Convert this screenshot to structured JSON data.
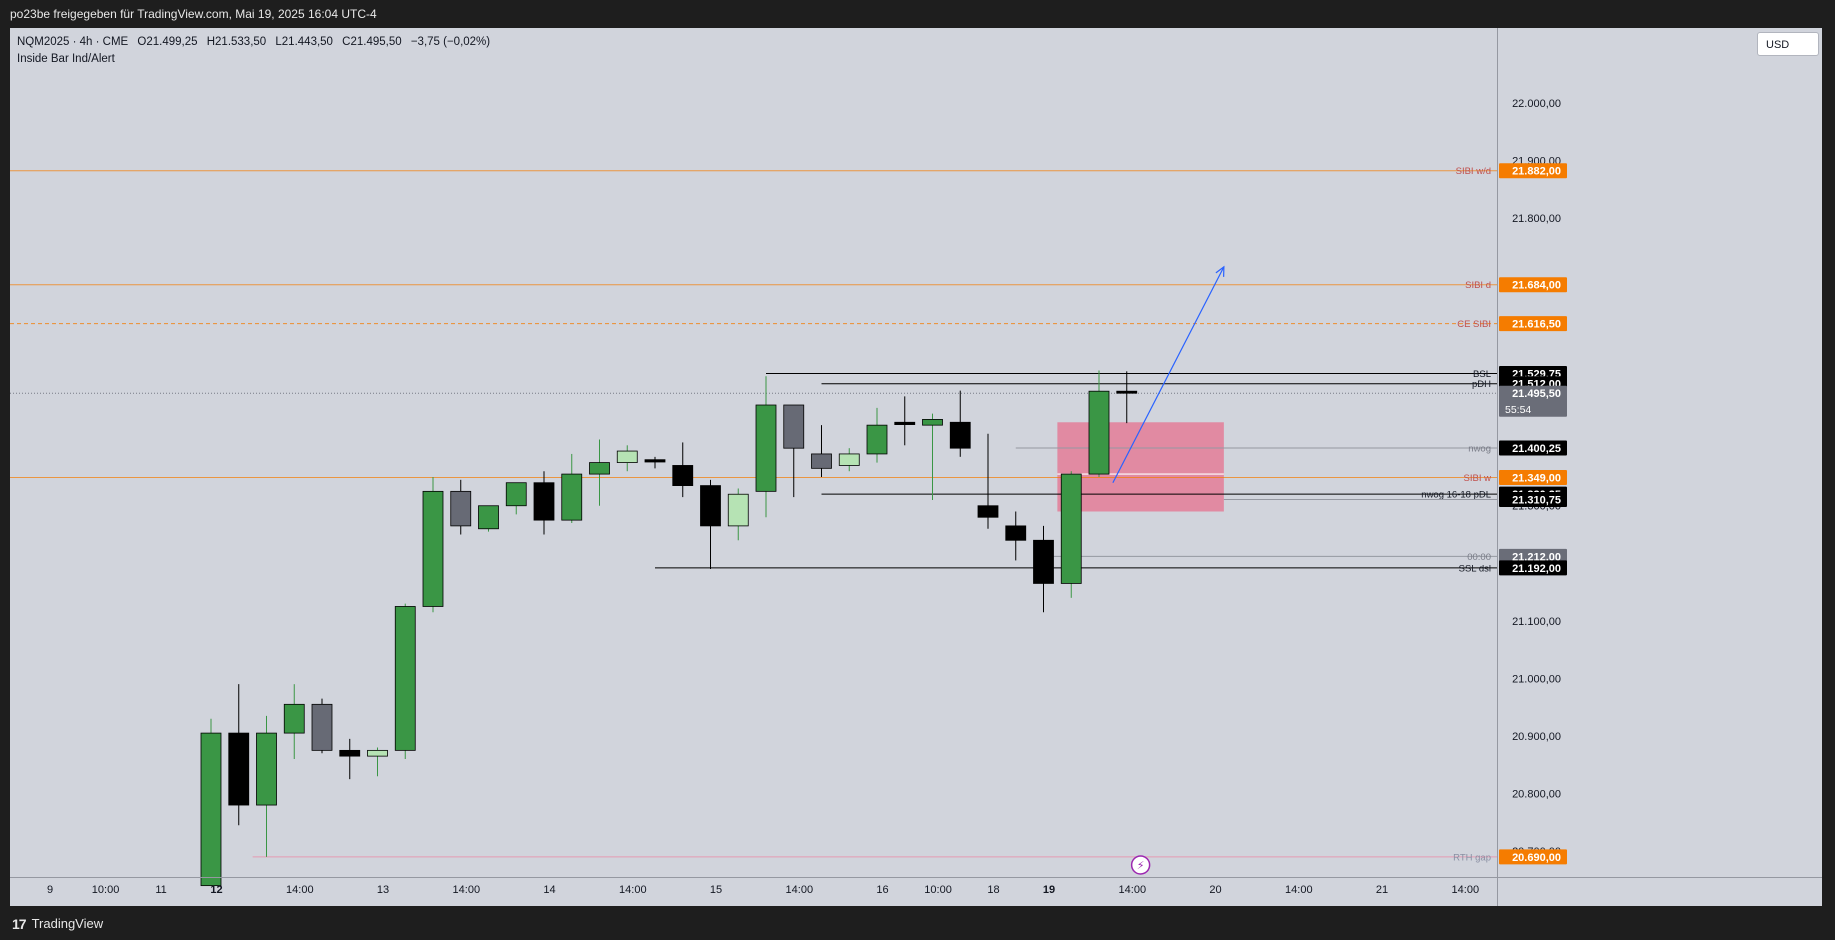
{
  "header": {
    "title": "po23be freigegeben für TradingView.com, Mai 19, 2025 16:04 UTC-4"
  },
  "footer": {
    "brand": "TradingView",
    "logo_glyph": "17"
  },
  "legend": {
    "symbol": "NQM2025 · 4h · CME",
    "open": "O21.499,25",
    "high": "H21.533,50",
    "low": "L21.443,50",
    "close": "C21.495,50",
    "change": "−3,75 (−0,02%)",
    "indicator": "Inside Bar Ind/Alert"
  },
  "currency": "USD",
  "colors": {
    "background": "#d1d4dc",
    "bull": "#3a9645",
    "bear": "#000000",
    "inside_bull": "#b6e3b4",
    "inside_bear": "#676a75",
    "orange": "#f57c00",
    "fvg_box": "#e6728f",
    "arrow": "#2962ff"
  },
  "chart_data": {
    "type": "candlestick",
    "title": "",
    "xlabel": "",
    "ylabel": "",
    "ylim": [
      20655,
      22130
    ],
    "y_ticks": [
      20700,
      20800,
      20900,
      21000,
      21100,
      21300,
      21800,
      21900,
      22000
    ],
    "y_tick_labels": [
      "20.700,00",
      "20.800,00",
      "20.900,00",
      "21.000,00",
      "21.100,00",
      "21.300,00",
      "21.800,00",
      "21.900,00",
      "22.000,00"
    ],
    "x_tick_labels": [
      {
        "i": -5.8,
        "text": "9"
      },
      {
        "i": -3.8,
        "text": "10:00"
      },
      {
        "i": -1.8,
        "text": "11"
      },
      {
        "i": 0.2,
        "text": "12",
        "bold": true
      },
      {
        "i": 3.2,
        "text": "14:00"
      },
      {
        "i": 6.2,
        "text": "13"
      },
      {
        "i": 9.2,
        "text": "14:00"
      },
      {
        "i": 12.2,
        "text": "14"
      },
      {
        "i": 15.2,
        "text": "14:00"
      },
      {
        "i": 18.2,
        "text": "15"
      },
      {
        "i": 21.2,
        "text": "14:00"
      },
      {
        "i": 24.2,
        "text": "16"
      },
      {
        "i": 26.2,
        "text": "10:00"
      },
      {
        "i": 28.2,
        "text": "18"
      },
      {
        "i": 30.2,
        "text": "19",
        "bold": true
      },
      {
        "i": 33.2,
        "text": "14:00"
      },
      {
        "i": 36.2,
        "text": "20"
      },
      {
        "i": 39.2,
        "text": "14:00"
      },
      {
        "i": 42.2,
        "text": "21"
      },
      {
        "i": 45.2,
        "text": "14:00"
      }
    ],
    "candles": [
      {
        "o": 20640,
        "h": 20930,
        "l": 20640,
        "c": 20905,
        "t": "bull"
      },
      {
        "o": 20905,
        "h": 20990,
        "l": 20745,
        "c": 20780,
        "t": "bear"
      },
      {
        "o": 20780,
        "h": 20935,
        "l": 20690,
        "c": 20905,
        "t": "bull"
      },
      {
        "o": 20905,
        "h": 20990,
        "l": 20860,
        "c": 20955,
        "t": "bull"
      },
      {
        "o": 20955,
        "h": 20965,
        "l": 20870,
        "c": 20875,
        "t": "inside_bear"
      },
      {
        "o": 20875,
        "h": 20895,
        "l": 20825,
        "c": 20865,
        "t": "bear"
      },
      {
        "o": 20865,
        "h": 20880,
        "l": 20830,
        "c": 20875,
        "t": "inside_bull"
      },
      {
        "o": 20875,
        "h": 21130,
        "l": 20860,
        "c": 21125,
        "t": "bull"
      },
      {
        "o": 21125,
        "h": 21350,
        "l": 21115,
        "c": 21325,
        "t": "bull"
      },
      {
        "o": 21325,
        "h": 21345,
        "l": 21250,
        "c": 21265,
        "t": "inside_bear"
      },
      {
        "o": 21260,
        "h": 21300,
        "l": 21255,
        "c": 21300,
        "t": "bull"
      },
      {
        "o": 21300,
        "h": 21340,
        "l": 21285,
        "c": 21340,
        "t": "bull"
      },
      {
        "o": 21340,
        "h": 21360,
        "l": 21250,
        "c": 21275,
        "t": "bear"
      },
      {
        "o": 21275,
        "h": 21390,
        "l": 21270,
        "c": 21355,
        "t": "bull"
      },
      {
        "o": 21355,
        "h": 21415,
        "l": 21300,
        "c": 21375,
        "t": "bull"
      },
      {
        "o": 21375,
        "h": 21405,
        "l": 21360,
        "c": 21395,
        "t": "inside_bull"
      },
      {
        "o": 21380,
        "h": 21385,
        "l": 21365,
        "c": 21376,
        "t": "bear"
      },
      {
        "o": 21370,
        "h": 21410,
        "l": 21315,
        "c": 21335,
        "t": "bear"
      },
      {
        "o": 21335,
        "h": 21345,
        "l": 21190,
        "c": 21265,
        "t": "bear"
      },
      {
        "o": 21265,
        "h": 21330,
        "l": 21240,
        "c": 21320,
        "t": "inside_bull"
      },
      {
        "o": 21325,
        "h": 21525,
        "l": 21280,
        "c": 21475,
        "t": "bull"
      },
      {
        "o": 21475,
        "h": 21475,
        "l": 21315,
        "c": 21400,
        "t": "inside_bear"
      },
      {
        "o": 21390,
        "h": 21440,
        "l": 21350,
        "c": 21365,
        "t": "inside_bear"
      },
      {
        "o": 21370,
        "h": 21400,
        "l": 21360,
        "c": 21390,
        "t": "inside_bull"
      },
      {
        "o": 21390,
        "h": 21470,
        "l": 21375,
        "c": 21440,
        "t": "bull"
      },
      {
        "o": 21445,
        "h": 21490,
        "l": 21405,
        "c": 21441,
        "t": "bear"
      },
      {
        "o": 21440,
        "h": 21460,
        "l": 21310,
        "c": 21450,
        "t": "bull"
      },
      {
        "o": 21445,
        "h": 21500,
        "l": 21385,
        "c": 21400,
        "t": "bear"
      },
      {
        "o": 21300,
        "h": 21425,
        "l": 21260,
        "c": 21280,
        "t": "bear"
      },
      {
        "o": 21265,
        "h": 21290,
        "l": 21205,
        "c": 21240,
        "t": "bear"
      },
      {
        "o": 21240,
        "h": 21265,
        "l": 21115,
        "c": 21165,
        "t": "bear"
      },
      {
        "o": 21165,
        "h": 21360,
        "l": 21140,
        "c": 21355,
        "t": "bull"
      },
      {
        "o": 21355,
        "h": 21535,
        "l": 21350,
        "c": 21499,
        "t": "bull"
      },
      {
        "o": 21499,
        "h": 21533.5,
        "l": 21443.5,
        "c": 21495.5,
        "t": "bear"
      }
    ],
    "levels": [
      {
        "price": 21882,
        "label": "SIBI w/d",
        "tag": "21.882,00",
        "style": "orange",
        "tag_style": "orange",
        "from": -7.7
      },
      {
        "price": 21684,
        "label": "SIBI d",
        "tag": "21.684,00",
        "style": "orange",
        "tag_style": "orange",
        "from": -7.7
      },
      {
        "price": 21616.5,
        "label": "CE SIBI",
        "tag": "21.616,50",
        "style": "orange-dash",
        "tag_style": "orange",
        "from": -7.7
      },
      {
        "price": 21529.75,
        "label": "BSL",
        "tag": "21.529,75",
        "style": "black",
        "tag_style": "black",
        "from": 20
      },
      {
        "price": 21512,
        "label": "pDH",
        "tag": "21.512,00",
        "style": "black",
        "tag_style": "black",
        "from": 22
      },
      {
        "price": 21495.5,
        "label": "",
        "tag": "21.495,50",
        "style": "dotted",
        "tag_style": "gray",
        "from": -7.7
      },
      {
        "price": 21400.25,
        "label": "nwog",
        "tag": "21.400,25",
        "style": "gray",
        "tag_style": "black",
        "from": 29
      },
      {
        "price": 21349,
        "label": "SIBI w",
        "tag": "21.349,00",
        "style": "orange",
        "tag_style": "orange",
        "from": -7.7
      },
      {
        "price": 21320.25,
        "label": "nwog 16-18 pDL",
        "tag": "21.320,25",
        "style": "black",
        "tag_style": "black",
        "from": 22
      },
      {
        "price": 21310.75,
        "label": "",
        "tag": "21.310,75",
        "style": "gray",
        "tag_style": "black",
        "from": 36.5
      },
      {
        "price": 21212,
        "label": "00:00",
        "tag": "21.212,00",
        "style": "gray",
        "tag_style": "gray",
        "from": 30.3
      },
      {
        "price": 21192,
        "label": "SSL dsl",
        "tag": "21.192,00",
        "style": "black",
        "tag_style": "black",
        "from": 16
      },
      {
        "price": 20690,
        "label": "RTH gap",
        "tag": "20.690,00",
        "style": "pink",
        "tag_style": "orange",
        "from": 1.5
      }
    ],
    "countdown": "55:54",
    "fvg_zone": {
      "x_from": 30.5,
      "x_to": 36.5,
      "y_top": 21445,
      "y_bottom": 21290,
      "mid": 21355
    },
    "arrow": {
      "x1": 32.5,
      "y1": 21340,
      "x2": 36.5,
      "y2": 21715
    },
    "marker": {
      "x": 33.5,
      "label": "⚡"
    }
  }
}
